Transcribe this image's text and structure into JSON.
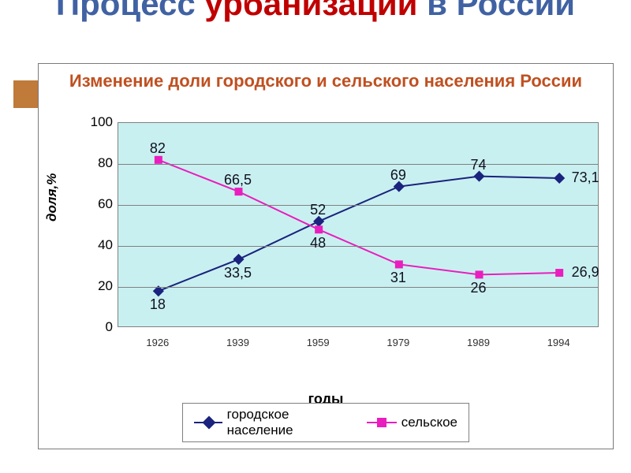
{
  "slide_title": {
    "w1": "Процесс",
    "w2": "урбанизации",
    "w3": "в России"
  },
  "chart": {
    "type": "line",
    "title": "Изменение доли городского и сельского населения России",
    "title_color": "#c05020",
    "title_fontsize": 22,
    "background_color": "#c9f0f0",
    "grid_color": "#808080",
    "xaxis_label": "годы",
    "yaxis_label": "доля,%",
    "ylim": [
      0,
      100
    ],
    "ytick_step": 20,
    "yticks": [
      0,
      20,
      40,
      60,
      80,
      100
    ],
    "categories": [
      "1926",
      "1939",
      "1959",
      "1979",
      "1989",
      "1994"
    ],
    "series": [
      {
        "name": "городское население",
        "color": "#1a237e",
        "marker": "diamond",
        "line_width": 2,
        "values": [
          18,
          33.5,
          52,
          69,
          74,
          73.1
        ],
        "labels": [
          "18",
          "33,5",
          "52",
          "69",
          "74",
          "73,1"
        ],
        "label_pos": [
          "below",
          "below",
          "above",
          "above",
          "above",
          "right"
        ]
      },
      {
        "name": "сельское",
        "color": "#e91ebe",
        "marker": "square",
        "line_width": 2,
        "values": [
          82,
          66.5,
          48,
          31,
          26,
          26.9
        ],
        "labels": [
          "82",
          "66,5",
          "48",
          "31",
          "26",
          "26,9"
        ],
        "label_pos": [
          "above",
          "above",
          "below",
          "below",
          "below",
          "right"
        ]
      }
    ],
    "legend_position": "bottom"
  }
}
